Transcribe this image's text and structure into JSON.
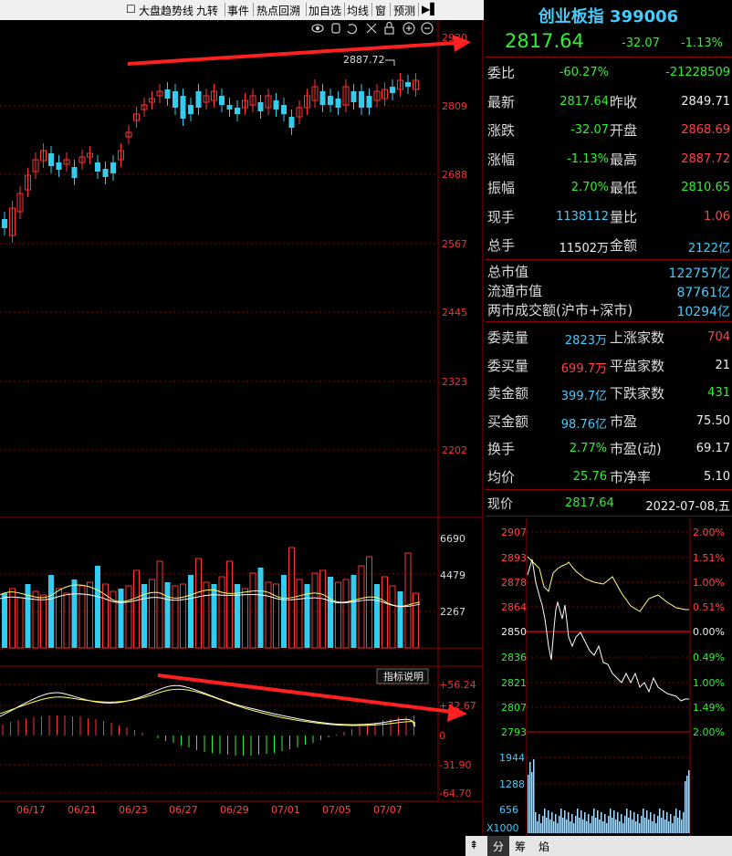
{
  "toolbar": {
    "items": [
      "大盘趋势线",
      "九转",
      "事件",
      "热点回溯",
      "加自选",
      "均线",
      "窗",
      "预测"
    ]
  },
  "main": {
    "price_axis": [
      "2930",
      "2809",
      "2688",
      "2567",
      "2445",
      "2323",
      "2202"
    ],
    "high_marker": "2887.72",
    "volume_axis": [
      "6690",
      "4479",
      "2267"
    ],
    "macd_axis": [
      "+56.24",
      "+32.67",
      "0",
      "-31.90",
      "-64.70"
    ],
    "indicator_btn": "指标说明",
    "dates": [
      "06/17",
      "06/21",
      "06/23",
      "06/27",
      "06/29",
      "07/01",
      "07/05",
      "07/07"
    ]
  },
  "quote": {
    "title": "创业板指 399006",
    "price": "2817.64",
    "change": "-32.07",
    "change_pct": "-1.13%",
    "rows": [
      {
        "l1": "委比",
        "v1": "-60.27%",
        "l2": "",
        "v2": "-21228509"
      },
      {
        "l1": "最新",
        "v1": "2817.64",
        "l2": "昨收",
        "v2": "2849.71"
      },
      {
        "l1": "涨跌",
        "v1": "-32.07",
        "l2": "开盘",
        "v2": "2868.69"
      },
      {
        "l1": "涨幅",
        "v1": "-1.13%",
        "l2": "最高",
        "v2": "2887.72"
      },
      {
        "l1": "振幅",
        "v1": "2.70%",
        "l2": "最低",
        "v2": "2810.65"
      },
      {
        "l1": "现手",
        "v1": "1138112",
        "l2": "量比",
        "v2": "1.06"
      },
      {
        "l1": "总手",
        "v1": "11502万",
        "l2": "金额",
        "v2": "2122亿"
      }
    ],
    "mkt": [
      {
        "l": "总市值",
        "v": "122757亿"
      },
      {
        "l": "流通市值",
        "v": "87761亿"
      },
      {
        "l": "两市成交额(沪市+深市)",
        "v": "10294亿"
      }
    ],
    "stats": [
      {
        "l1": "委卖量",
        "v1": "2823万",
        "l2": "上涨家数",
        "v2": "704"
      },
      {
        "l1": "委买量",
        "v1": "699.7万",
        "l2": "平盘家数",
        "v2": "21"
      },
      {
        "l1": "卖金额",
        "v1": "399.7亿",
        "l2": "下跌家数",
        "v2": "431"
      },
      {
        "l1": "买金额",
        "v1": "98.76亿",
        "l2": "市盈",
        "v2": "75.50"
      },
      {
        "l1": "换手",
        "v1": "2.77%",
        "l2": "市盈(动)",
        "v2": "69.17"
      },
      {
        "l1": "均价",
        "v1": "25.76",
        "l2": "市净率",
        "v2": "5.10"
      }
    ],
    "now_label": "现价",
    "now_price": "2817.64",
    "date": "2022-07-08,五"
  },
  "mini": {
    "left_axis": [
      "2907",
      "2893",
      "2878",
      "2864",
      "2850",
      "2836",
      "2821",
      "2807",
      "2793"
    ],
    "right_axis": [
      "2.00%",
      "1.51%",
      "1.00%",
      "0.51%",
      "0.00%",
      "0.49%",
      "1.00%",
      "1.49%",
      "2.00%"
    ],
    "vol_axis": [
      "1944",
      "1288",
      "656"
    ],
    "vol_unit": "X1000"
  },
  "bottom": {
    "tabs": [
      "分",
      "筹",
      "焰"
    ]
  },
  "colors": {
    "up": "#ff3333",
    "down": "#33ccee",
    "bg": "#000000",
    "grid": "#8b0000"
  }
}
